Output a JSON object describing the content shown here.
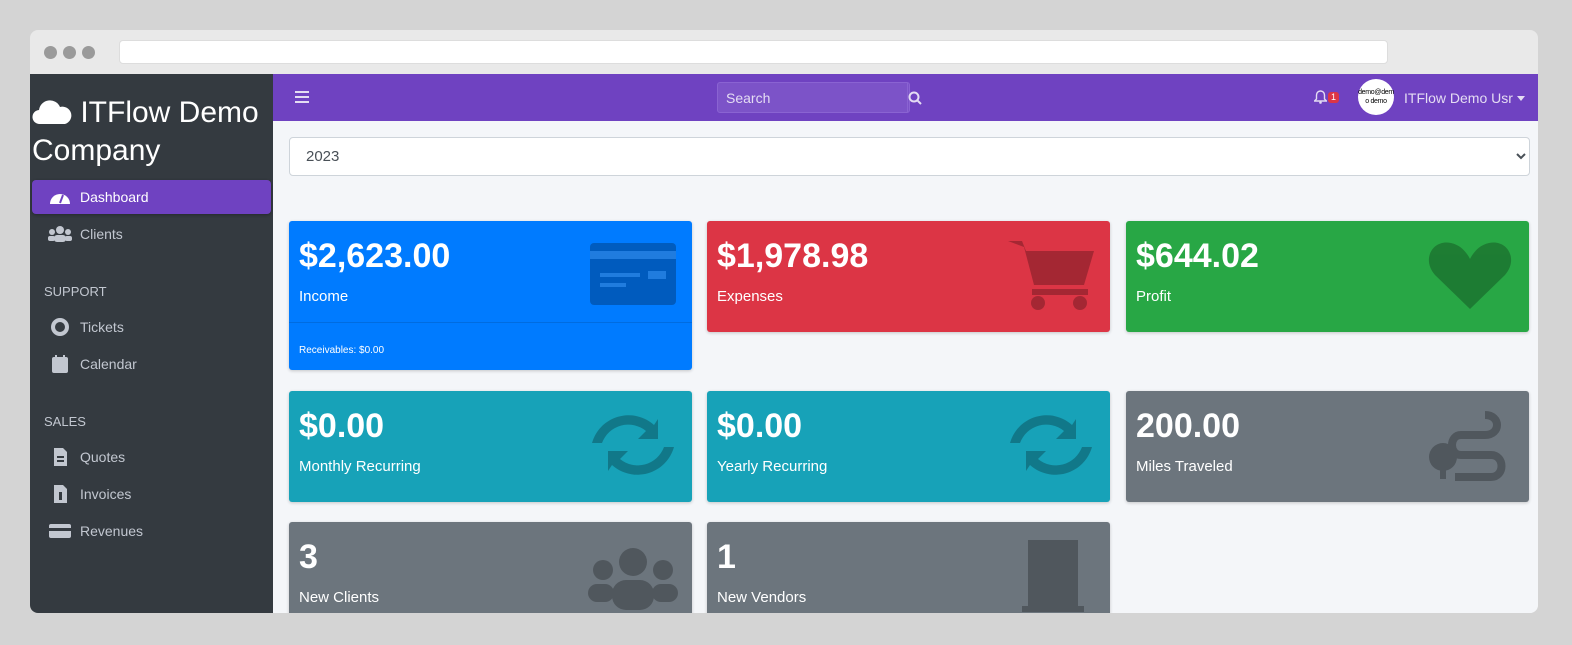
{
  "brand": {
    "name": "ITFlow Demo Company",
    "icon": "cloud-icon"
  },
  "sidebar": {
    "items": [
      {
        "label": "Dashboard",
        "icon": "gauge-icon",
        "active": true
      },
      {
        "label": "Clients",
        "icon": "users-icon"
      }
    ],
    "support_header": "SUPPORT",
    "support": [
      {
        "label": "Tickets",
        "icon": "lifering-icon"
      },
      {
        "label": "Calendar",
        "icon": "calendar-icon"
      }
    ],
    "sales_header": "SALES",
    "sales": [
      {
        "label": "Quotes",
        "icon": "quote-file-icon"
      },
      {
        "label": "Invoices",
        "icon": "invoice-file-icon"
      },
      {
        "label": "Revenues",
        "icon": "credit-card-icon"
      }
    ]
  },
  "topbar": {
    "search_placeholder": "Search",
    "notifications": "1",
    "avatar_text": "demo@demo demo",
    "user": "ITFlow Demo Usr"
  },
  "year": "2023",
  "cards": [
    {
      "value": "$2,623.00",
      "label": "Income",
      "footer": "Receivables: $0.00",
      "color": "#007bff",
      "icon": "credit-card-icon"
    },
    {
      "value": "$1,978.98",
      "label": "Expenses",
      "color": "#dc3545",
      "icon": "cart-icon"
    },
    {
      "value": "$644.02",
      "label": "Profit",
      "color": "#28a745",
      "icon": "heart-icon"
    },
    {
      "value": "$0.00",
      "label": "Monthly Recurring",
      "color": "#17a2b8",
      "icon": "sync-icon"
    },
    {
      "value": "$0.00",
      "label": "Yearly Recurring",
      "color": "#17a2b8",
      "icon": "sync-icon"
    },
    {
      "value": "200.00",
      "label": "Miles Traveled",
      "color": "#6c757d",
      "icon": "route-icon"
    },
    {
      "value": "3",
      "label": "New Clients",
      "color": "#6c757d",
      "icon": "users-icon"
    },
    {
      "value": "1",
      "label": "New Vendors",
      "color": "#6c757d",
      "icon": "building-icon"
    }
  ]
}
